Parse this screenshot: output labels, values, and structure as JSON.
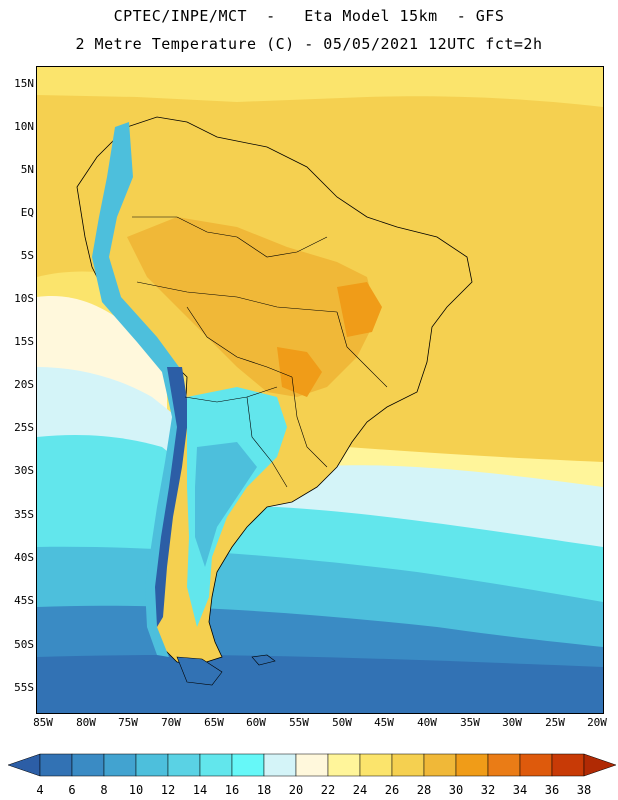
{
  "title_line1": "CPTEC/INPE/MCT  -   Eta Model 15km  - GFS",
  "title_line2": "2 Metre Temperature (C) - 05/05/2021 12UTC fct=2h",
  "lat_labels": [
    "15N",
    "10N",
    "5N",
    "EQ",
    "5S",
    "10S",
    "15S",
    "20S",
    "25S",
    "30S",
    "35S",
    "40S",
    "45S",
    "50S",
    "55S"
  ],
  "lon_labels": [
    "85W",
    "80W",
    "75W",
    "70W",
    "65W",
    "60W",
    "55W",
    "50W",
    "45W",
    "40W",
    "35W",
    "30W",
    "25W",
    "20W"
  ],
  "colorbar": {
    "levels": [
      "4",
      "6",
      "8",
      "10",
      "12",
      "14",
      "16",
      "18",
      "20",
      "22",
      "24",
      "26",
      "28",
      "30",
      "32",
      "34",
      "36",
      "38"
    ],
    "colors": [
      "#2c5ea6",
      "#3272b4",
      "#3a8bc4",
      "#42a3d0",
      "#4dbfdc",
      "#5ad2e4",
      "#62e6ec",
      "#66f8f8",
      "#d4f4f8",
      "#fff8dc",
      "#fff59a",
      "#fbe46c",
      "#f5d050",
      "#f0b838",
      "#f09c18",
      "#ea7c16",
      "#de5a0c",
      "#c83a06",
      "#b02a04"
    ]
  }
}
